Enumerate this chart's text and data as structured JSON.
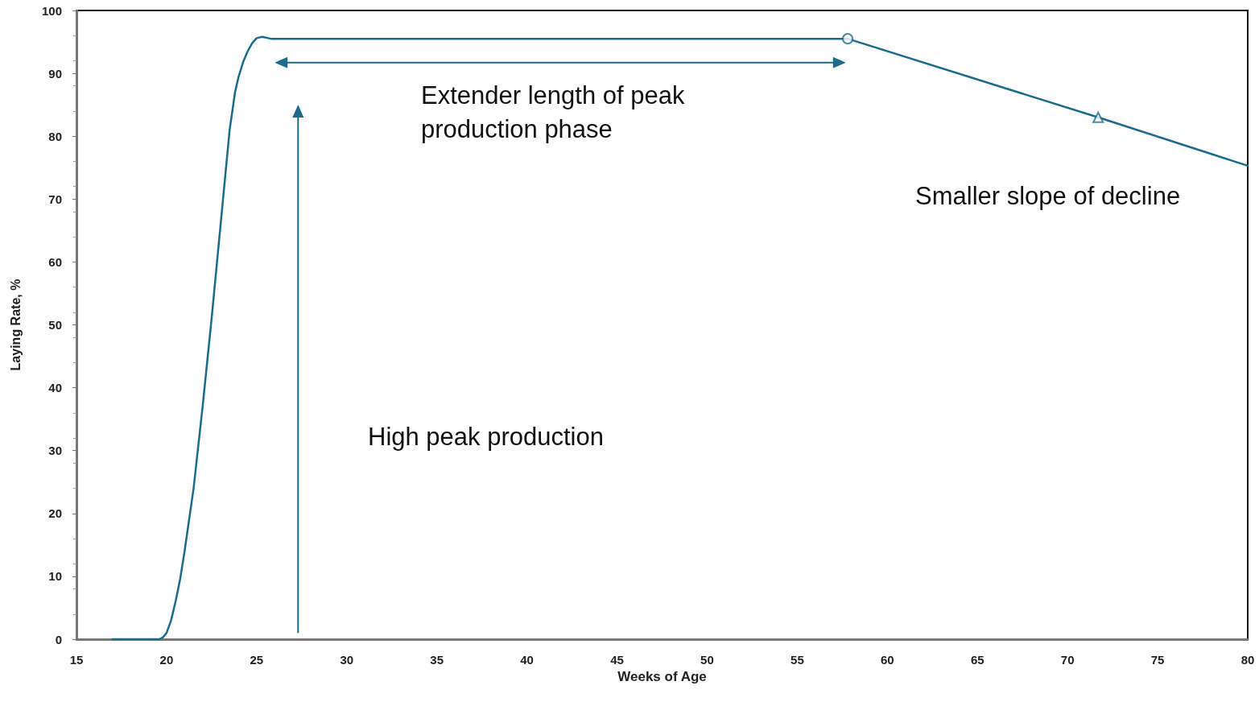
{
  "chart_data": {
    "type": "line",
    "xlabel": "Weeks of Age",
    "ylabel": "Laying Rate, %",
    "annotations": [
      "Extender length of peak production phase",
      "Smaller slope of decline",
      "High peak production"
    ],
    "x": [
      17,
      19.6,
      19.8,
      20,
      20.25,
      20.5,
      20.75,
      21,
      21.5,
      22,
      22.5,
      23,
      23.5,
      23.8,
      24,
      24.25,
      24.5,
      24.75,
      25,
      25.3,
      25.8,
      57.8,
      71.7,
      80
    ],
    "series": [
      {
        "color": "#1b6c8c",
        "marker": "none",
        "line_style": "solid",
        "values": [
          0,
          0,
          0.3,
          1,
          3,
          6,
          9.5,
          14,
          24,
          37,
          51,
          66,
          81,
          87,
          89.5,
          91.8,
          93.5,
          94.8,
          95.6,
          95.8,
          95.5,
          95.5,
          83,
          75.3
        ]
      },
      {
        "type": "scatter",
        "color": "#1b6c8c",
        "marker": "circle",
        "x": [
          57.8
        ],
        "values": [
          95.5
        ]
      },
      {
        "type": "scatter",
        "color": "#1b6c8c",
        "marker": "triangle",
        "x": [
          71.7
        ],
        "values": [
          83
        ]
      }
    ],
    "xlim": [
      15,
      80
    ],
    "xticks": [
      15,
      20,
      25,
      30,
      35,
      40,
      45,
      50,
      55,
      60,
      65,
      70,
      75,
      80
    ],
    "ylim": [
      0,
      100
    ],
    "yticks": [
      0,
      10,
      20,
      30,
      40,
      50,
      60,
      70,
      80,
      90,
      100
    ],
    "grid": false
  }
}
